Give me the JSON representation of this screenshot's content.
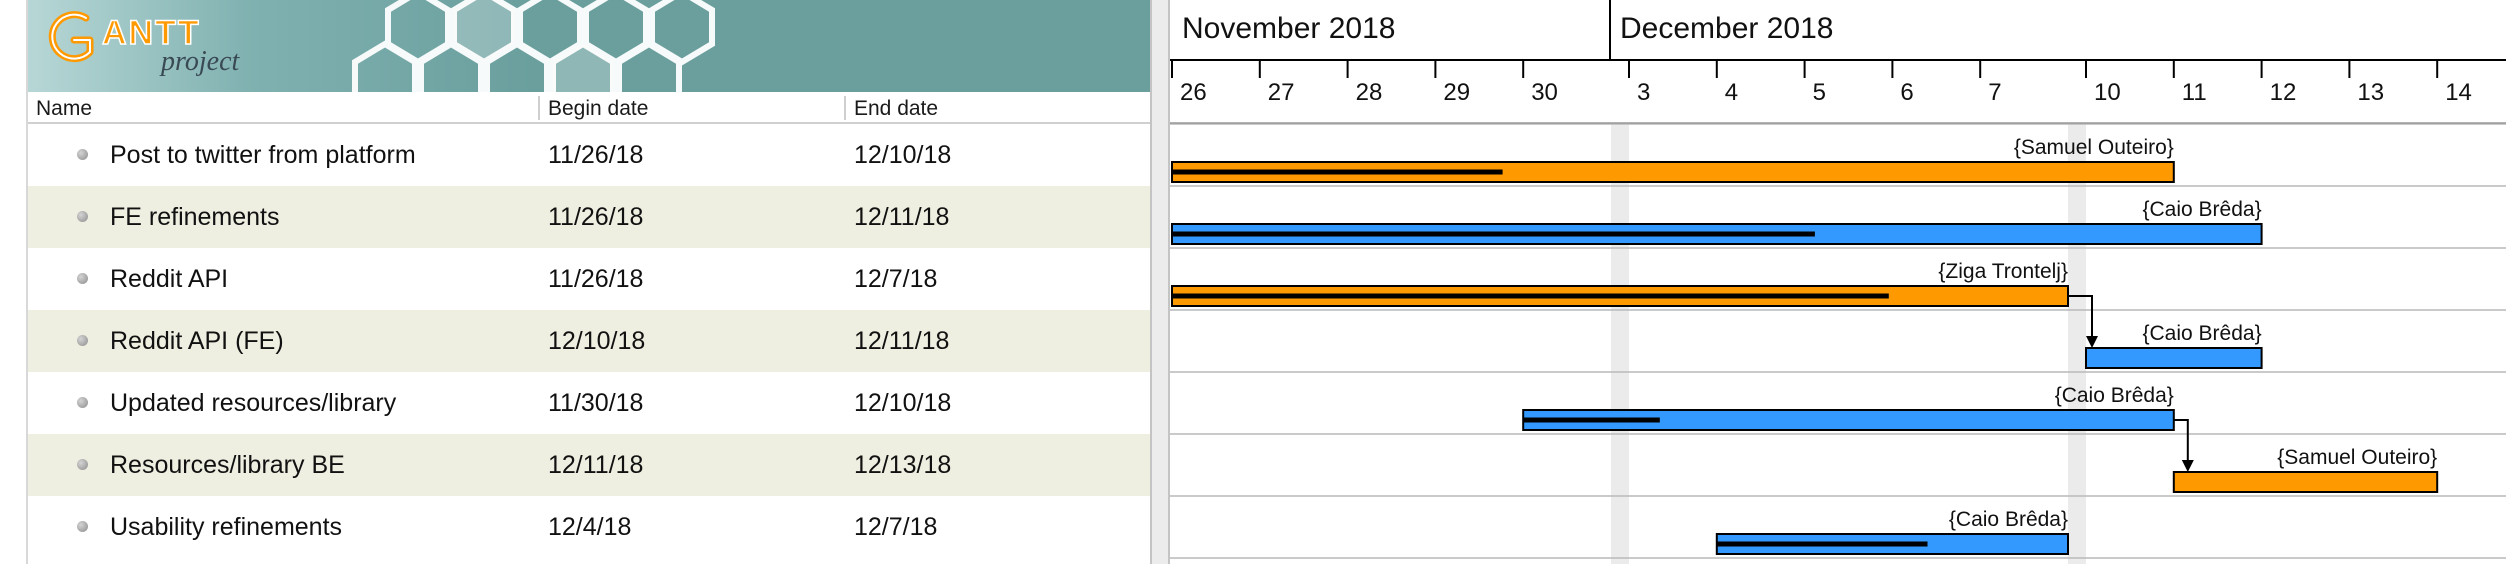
{
  "table": {
    "columns": [
      {
        "key": "name",
        "label": "Name"
      },
      {
        "key": "begin",
        "label": "Begin date"
      },
      {
        "key": "end",
        "label": "End date"
      }
    ],
    "rows": [
      {
        "name": "Post to twitter from platform",
        "begin": "11/26/18",
        "end": "12/10/18"
      },
      {
        "name": "FE refinements",
        "begin": "11/26/18",
        "end": "12/11/18"
      },
      {
        "name": "Reddit API",
        "begin": "11/26/18",
        "end": "12/7/18"
      },
      {
        "name": "Reddit API (FE)",
        "begin": "12/10/18",
        "end": "12/11/18"
      },
      {
        "name": "Updated resources/library",
        "begin": "11/30/18",
        "end": "12/10/18"
      },
      {
        "name": "Resources/library BE",
        "begin": "12/11/18",
        "end": "12/13/18"
      },
      {
        "name": "Usability refinements",
        "begin": "12/4/18",
        "end": "12/7/18"
      }
    ]
  },
  "chart_data": {
    "type": "gantt",
    "months": [
      {
        "label": "November 2018",
        "start_day": "2018-11-26"
      },
      {
        "label": "December 2018",
        "start_day": "2018-12-01"
      }
    ],
    "days": [
      "2018-11-26",
      "2018-11-27",
      "2018-11-28",
      "2018-11-29",
      "2018-11-30",
      "2018-12-03",
      "2018-12-04",
      "2018-12-05",
      "2018-12-06",
      "2018-12-07",
      "2018-12-10",
      "2018-12-11",
      "2018-12-12",
      "2018-12-13",
      "2018-12-14"
    ],
    "day_labels": [
      "26",
      "27",
      "28",
      "29",
      "30",
      "3",
      "4",
      "5",
      "6",
      "7",
      "10",
      "11",
      "12",
      "13",
      "14"
    ],
    "weekend_after": [
      "2018-11-30",
      "2018-12-07"
    ],
    "tasks": [
      {
        "start": "2018-11-26",
        "end": "2018-12-10",
        "resource": "{Samuel Outeiro}",
        "color": "#ff9900",
        "progress": 0.33
      },
      {
        "start": "2018-11-26",
        "end": "2018-12-11",
        "resource": "{Caio Brêda}",
        "color": "#3399ff",
        "progress": 0.59
      },
      {
        "start": "2018-11-26",
        "end": "2018-12-07",
        "resource": "{Ziga Trontelj}",
        "color": "#ff9900",
        "progress": 0.8
      },
      {
        "start": "2018-12-10",
        "end": "2018-12-11",
        "resource": "{Caio Brêda}",
        "color": "#3399ff",
        "progress": 0
      },
      {
        "start": "2018-11-30",
        "end": "2018-12-10",
        "resource": "{Caio Brêda}",
        "color": "#3399ff",
        "progress": 0.21
      },
      {
        "start": "2018-12-11",
        "end": "2018-12-13",
        "resource": "{Samuel Outeiro}",
        "color": "#ff9900",
        "progress": 0
      },
      {
        "start": "2018-12-04",
        "end": "2018-12-07",
        "resource": "{Caio Brêda}",
        "color": "#3399ff",
        "progress": 0.6
      }
    ],
    "dependencies": [
      {
        "from": 2,
        "to": 3
      },
      {
        "from": 4,
        "to": 5
      }
    ]
  }
}
